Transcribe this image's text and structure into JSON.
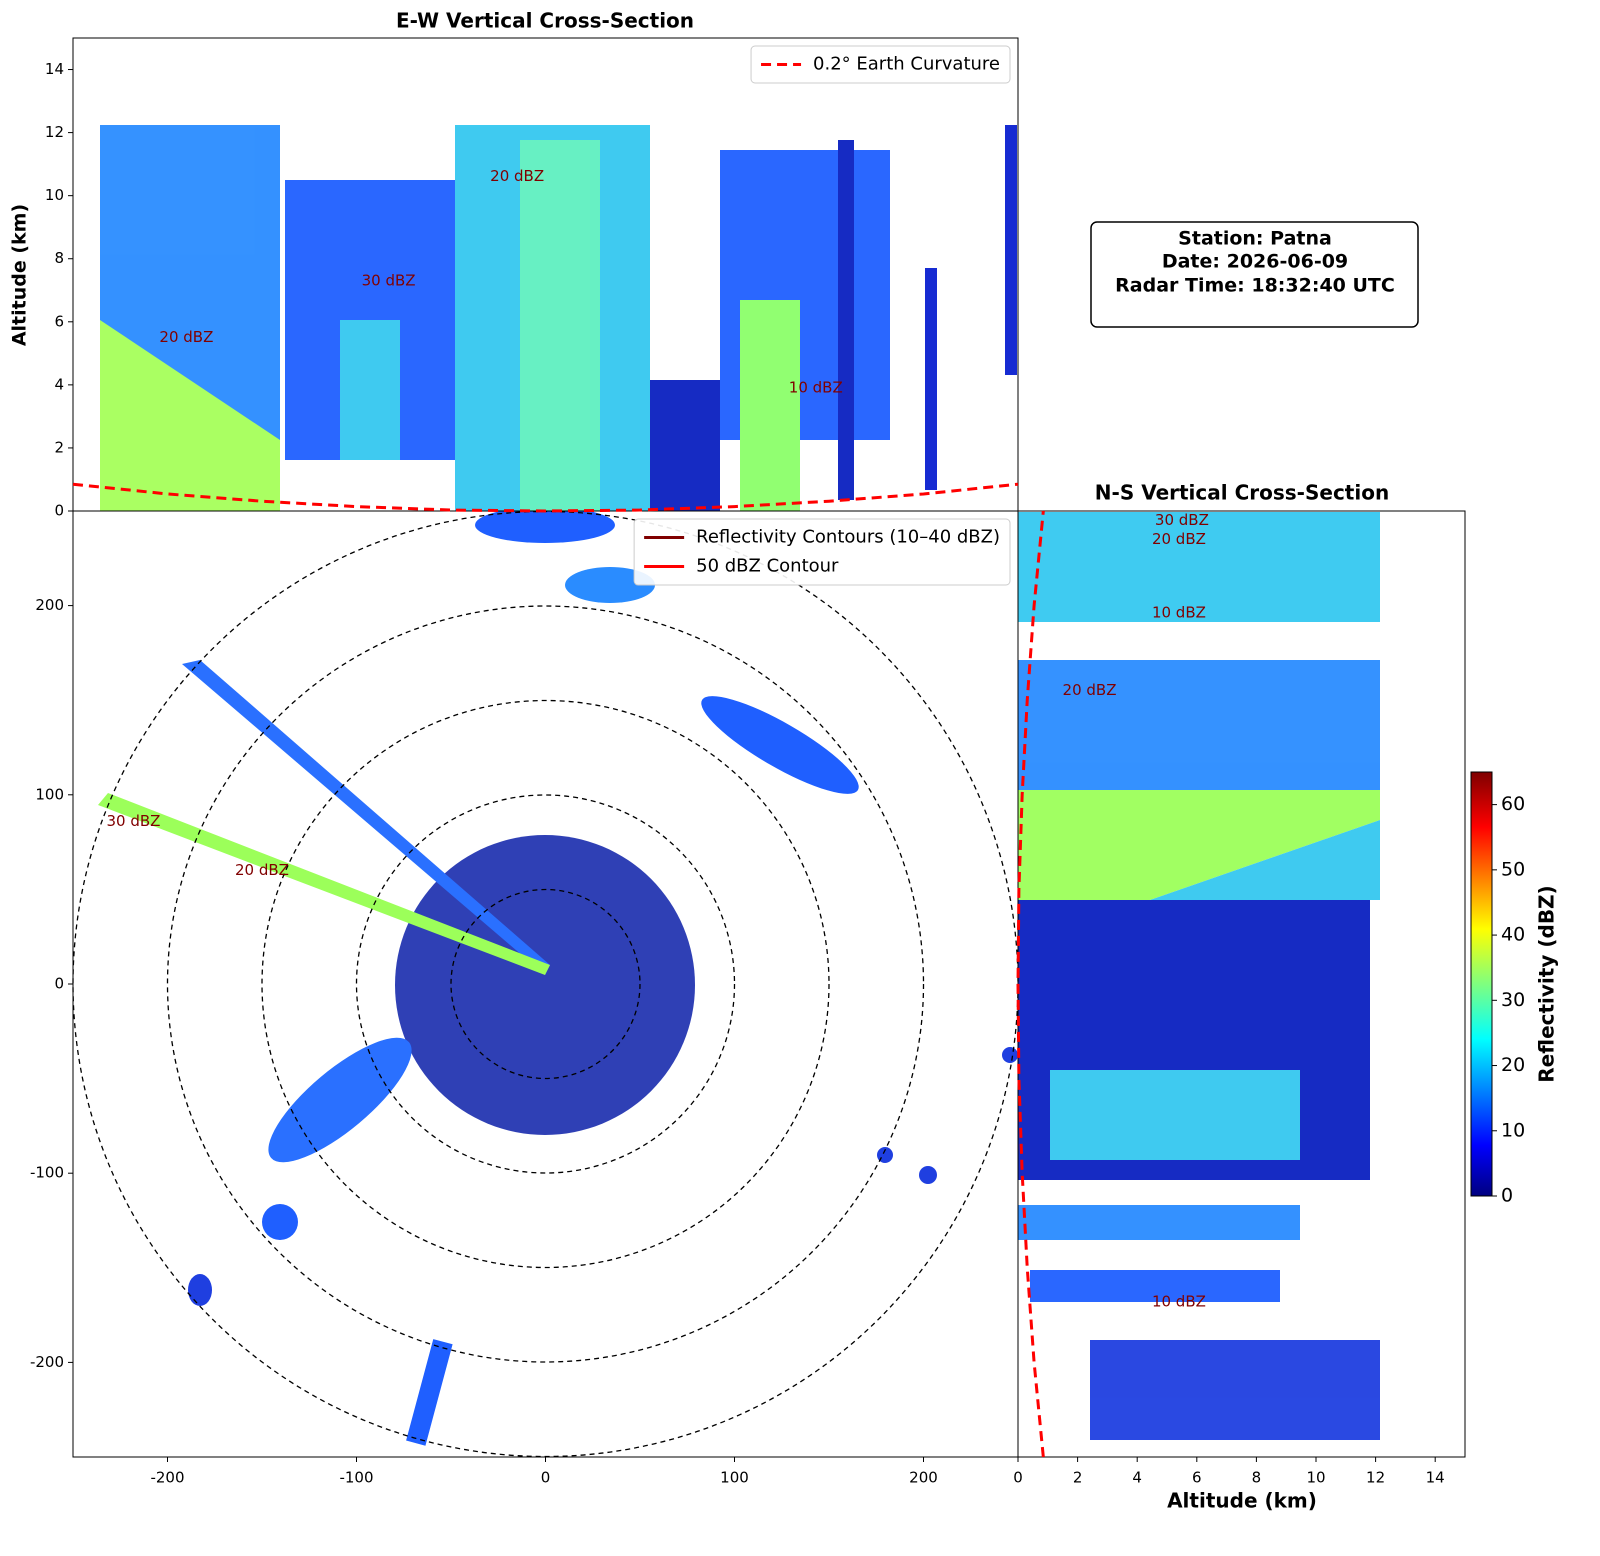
{
  "info_box": {
    "lines": [
      "Station: Patna",
      "Date: 2026-06-09",
      "Radar Time: 18:32:40 UTC"
    ]
  },
  "chart_data": [
    {
      "type": "ppi",
      "xlim": [
        -250,
        250
      ],
      "ylim": [
        -250,
        250
      ],
      "xticks": [
        -200,
        -100,
        0,
        100,
        200
      ],
      "yticks": [
        -200,
        -100,
        0,
        100,
        200
      ],
      "range_rings": [
        50,
        100,
        150,
        200,
        250
      ],
      "legend_loc": "upper right",
      "legend": [
        {
          "name": "Reflectivity Contours (10–40 dBZ)",
          "color": "#800000"
        },
        {
          "name": "50 dBZ Contour",
          "color": "#ff0000"
        }
      ],
      "annotations": [
        {
          "text": "30 dBZ",
          "x": -218,
          "y": 86
        },
        {
          "text": "20 dBZ",
          "x": -150,
          "y": 60
        }
      ]
    },
    {
      "type": "line",
      "title": "E-W Vertical Cross-Section",
      "y_label": "Altitude (km)",
      "xlim": [
        -250,
        250
      ],
      "ylim": [
        0,
        15
      ],
      "yticks": [
        0,
        2,
        4,
        6,
        8,
        10,
        12,
        14
      ],
      "legend_loc": "upper right",
      "series": [
        {
          "name": "0.2° Earth Curvature",
          "color": "#ff0000",
          "dashed": true,
          "x": [
            -250,
            -200,
            -150,
            -100,
            -50,
            0,
            50,
            100,
            150,
            200,
            250
          ],
          "values": [
            0.85,
            0.54,
            0.31,
            0.14,
            0.03,
            0,
            0.03,
            0.14,
            0.31,
            0.54,
            0.85
          ]
        }
      ],
      "annotations": [
        {
          "text": "20 dBZ",
          "x": -190,
          "y": 5.5
        },
        {
          "text": "20 dBZ",
          "x": -15,
          "y": 10.6
        },
        {
          "text": "30 dBZ",
          "x": -83,
          "y": 7.3
        },
        {
          "text": "10 dBZ",
          "x": 143,
          "y": 3.9
        }
      ]
    },
    {
      "type": "line",
      "orientation": "horizontal",
      "title": "N-S Vertical Cross-Section",
      "x_label": "Altitude (km)",
      "xlim": [
        0,
        15
      ],
      "xticks": [
        0,
        2,
        4,
        6,
        8,
        10,
        12,
        14
      ],
      "ylim": [
        -250,
        250
      ],
      "series": [
        {
          "color": "#ff0000",
          "dashed": true,
          "y": [
            -250,
            -200,
            -150,
            -100,
            -50,
            0,
            50,
            100,
            150,
            200,
            250
          ],
          "values": [
            0.85,
            0.54,
            0.31,
            0.14,
            0.03,
            0,
            0.03,
            0.14,
            0.31,
            0.54,
            0.85
          ]
        }
      ],
      "annotations": [
        {
          "text": "30 dBZ",
          "x": 5.5,
          "y": 245
        },
        {
          "text": "20 dBZ",
          "x": 5.4,
          "y": 235
        },
        {
          "text": "10 dBZ",
          "x": 5.4,
          "y": 196
        },
        {
          "text": "20 dBZ",
          "x": 2.4,
          "y": 155
        },
        {
          "text": "10 dBZ",
          "x": 5.4,
          "y": -168
        }
      ]
    },
    {
      "type": "colorbar",
      "label": "Reflectivity (dBZ)",
      "colormap": "jet",
      "ylim": [
        0,
        65
      ],
      "yticks": [
        0,
        10,
        20,
        30,
        40,
        50,
        60
      ]
    }
  ]
}
